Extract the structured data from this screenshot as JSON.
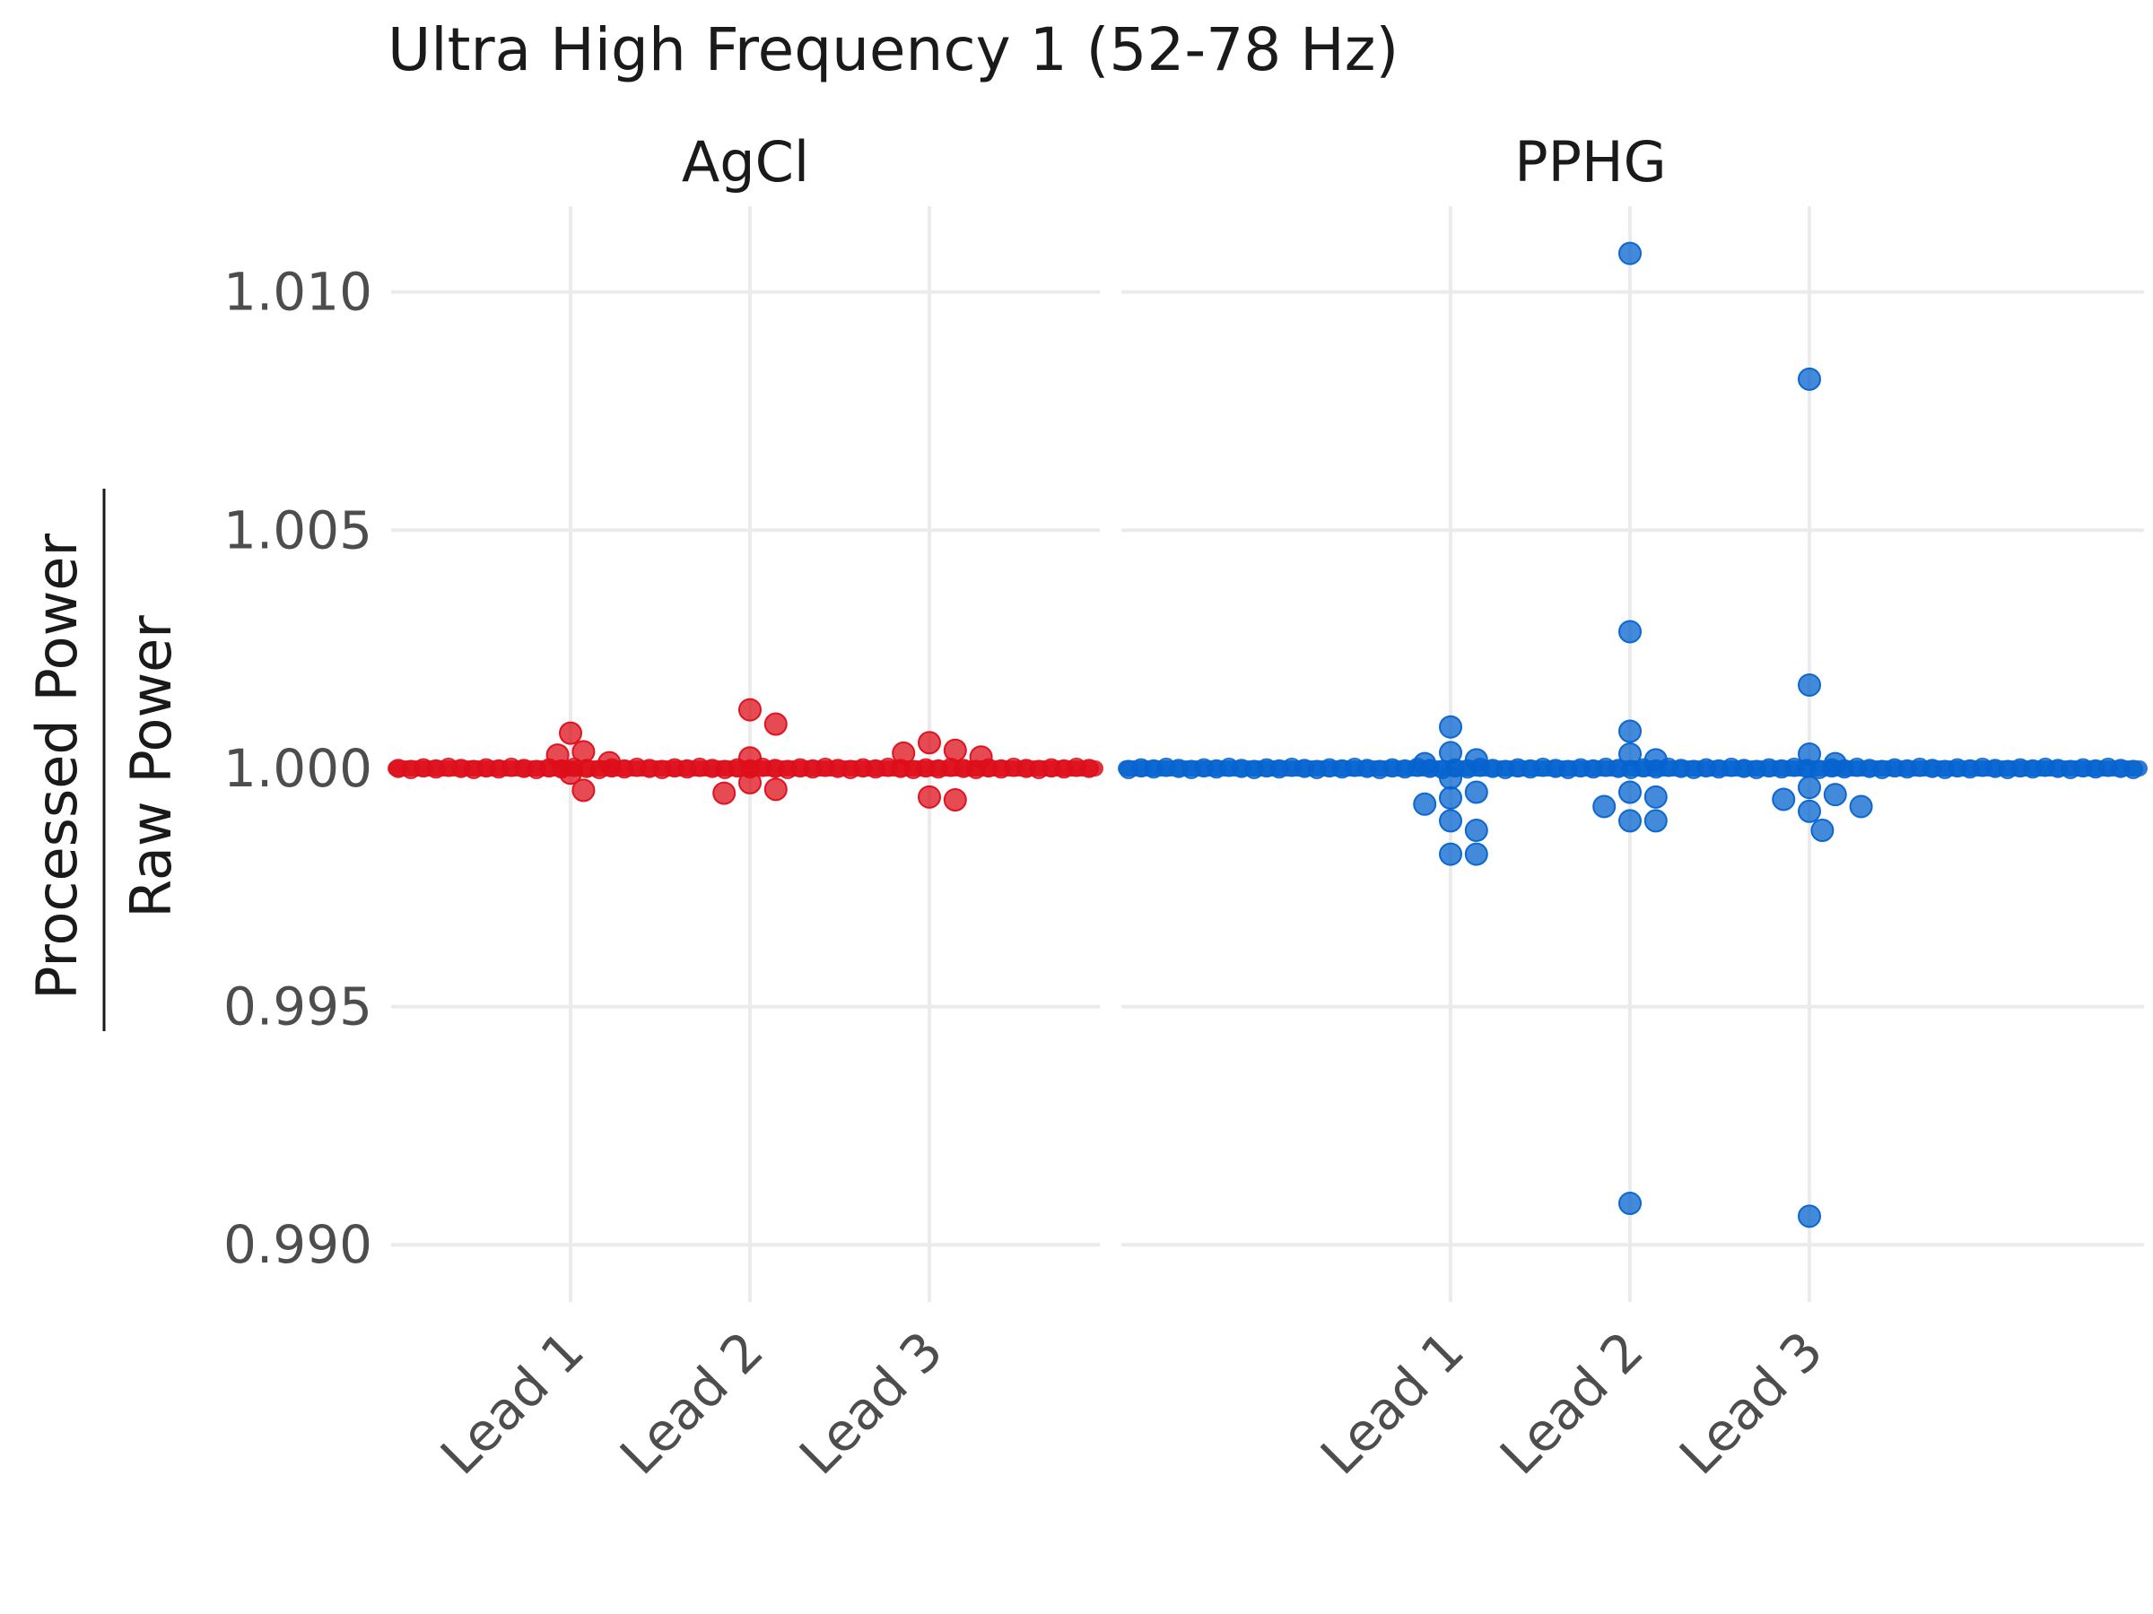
{
  "chart_data": {
    "type": "scatter",
    "title": "Ultra High Frequency 1 (52-78 Hz)",
    "ylabel_numerator": "Processed Power",
    "ylabel_denominator": "Raw Power",
    "xlabel": "",
    "ylim": [
      0.9888,
      1.0118
    ],
    "yticks": [
      0.99,
      0.995,
      1.0,
      1.005,
      1.01
    ],
    "ytick_labels": [
      "0.990",
      "0.995",
      "1.000",
      "1.005",
      "1.010"
    ],
    "categories": [
      "Lead 1",
      "Lead 2",
      "Lead 3"
    ],
    "grid": true,
    "legend": "none",
    "panels": [
      {
        "name": "AgCl",
        "color": "#de0d1a",
        "points": [
          {
            "x": "Lead 1",
            "values": [
              1.00074,
              1.00035,
              1.00028,
              1.00012,
              0.9999,
              0.99954
            ]
          },
          {
            "x": "Lead 2",
            "values": [
              1.00123,
              1.00093,
              1.00022,
              0.9997,
              0.99956,
              0.99948
            ]
          },
          {
            "x": "Lead 3",
            "values": [
              1.00054,
              1.00038,
              1.00032,
              1.00024,
              0.9994,
              0.99934
            ]
          }
        ]
      },
      {
        "name": "PPHG",
        "color": "#0563cf",
        "points": [
          {
            "x": "Lead 1",
            "values": [
              1.00087,
              1.00033,
              1.00018,
              1.0001,
              0.9998,
              0.9995,
              0.99938,
              0.99925,
              0.9989,
              0.9987,
              0.9982,
              0.9982
            ]
          },
          {
            "x": "Lead 2",
            "values": [
              1.01081,
              1.00287,
              1.00078,
              1.0003,
              1.00018,
              0.9995,
              0.9994,
              0.9992,
              0.9989,
              0.9989,
              0.99087
            ]
          },
          {
            "x": "Lead 3",
            "values": [
              1.00817,
              1.00175,
              1.0003,
              1.0001,
              0.9996,
              0.99945,
              0.99935,
              0.9992,
              0.9991,
              0.9987,
              0.9906
            ]
          }
        ]
      }
    ]
  }
}
